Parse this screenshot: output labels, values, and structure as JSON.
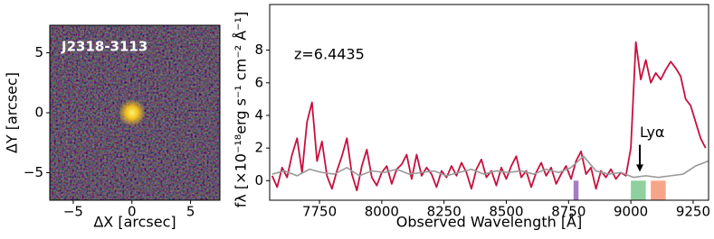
{
  "chart_data": [
    {
      "type": "image",
      "title": "J2318-3113",
      "xlabel": "ΔX [arcsec]",
      "ylabel": "ΔY [arcsec]",
      "xlim": [
        -7,
        7.5
      ],
      "ylim": [
        -7.3,
        7.3
      ],
      "xticks": [
        {
          "value": -5,
          "label": "−5"
        },
        0,
        5
      ],
      "yticks": [
        {
          "value": -5,
          "label": "−5"
        },
        0,
        5
      ]
    },
    {
      "type": "line",
      "xlabel": "Observed Wavelength [Å]",
      "ylabel": "fλ [×10⁻¹⁸erg s⁻¹ cm⁻² Å⁻¹]",
      "annotation": "z=6.4435",
      "arrow": {
        "text": "Lyα",
        "x": 9036,
        "y": 2.2,
        "arrow_to": 0.55
      },
      "xlim": [
        7550,
        9312
      ],
      "ylim": [
        -1.2,
        10.8
      ],
      "xticks": [
        7750,
        8000,
        8250,
        8500,
        8750,
        9000,
        9250
      ],
      "yticks": [
        0,
        2,
        4,
        6,
        8
      ],
      "bands": [
        {
          "range": [
            8770,
            8790
          ],
          "color": "#a77dc2"
        },
        {
          "range": [
            9000,
            9060
          ],
          "color": "#8fd19e"
        },
        {
          "range": [
            9080,
            9140
          ],
          "color": "#f7a58a"
        }
      ],
      "series": [
        {
          "color": "#c8103e",
          "x": [
            7560,
            7580,
            7600,
            7620,
            7640,
            7660,
            7680,
            7700,
            7720,
            7740,
            7760,
            7780,
            7800,
            7820,
            7840,
            7860,
            7880,
            7900,
            7920,
            7940,
            7960,
            7980,
            8000,
            8020,
            8040,
            8060,
            8080,
            8100,
            8120,
            8140,
            8160,
            8180,
            8200,
            8220,
            8240,
            8260,
            8280,
            8300,
            8320,
            8340,
            8360,
            8380,
            8400,
            8420,
            8440,
            8460,
            8480,
            8500,
            8520,
            8540,
            8560,
            8580,
            8600,
            8620,
            8640,
            8660,
            8680,
            8700,
            8720,
            8740,
            8760,
            8780,
            8800,
            8820,
            8840,
            8860,
            8880,
            8900,
            8920,
            8940,
            8960,
            8980,
            9000,
            9020,
            9040,
            9060,
            9080,
            9100,
            9120,
            9140,
            9160,
            9180,
            9200,
            9220,
            9240,
            9260,
            9280,
            9300
          ],
          "values": [
            0.3,
            -0.4,
            0.8,
            0.2,
            1.6,
            2.6,
            0.5,
            3.6,
            4.8,
            1.2,
            2.4,
            0.3,
            -0.5,
            0.6,
            1.5,
            2.6,
            0.4,
            -0.6,
            0.9,
            1.9,
            0.2,
            -0.3,
            0.5,
            0.9,
            -0.2,
            0.7,
            1.0,
            1.6,
            0.1,
            1.6,
            0.3,
            0.8,
            0.4,
            -0.4,
            0.6,
            0.2,
            0.9,
            0.3,
            1.1,
            0.5,
            -0.5,
            0.7,
            1.3,
            0.2,
            0.6,
            -0.3,
            0.8,
            0.1,
            0.9,
            1.5,
            0.2,
            0.6,
            -0.4,
            0.5,
            1.1,
            0.3,
            0.8,
            -0.2,
            0.4,
            0.9,
            0.1,
            1.2,
            1.8,
            0.4,
            0.8,
            -0.5,
            0.6,
            0.2,
            0.7,
            0.1,
            0.5,
            0.3,
            2.0,
            8.5,
            6.2,
            7.4,
            6.0,
            6.6,
            6.2,
            6.8,
            7.3,
            6.9,
            6.4,
            5.0,
            4.6,
            3.6,
            2.6,
            2.0
          ]
        },
        {
          "color": "#999999",
          "x": [
            7560,
            7610,
            7660,
            7710,
            7760,
            7810,
            7860,
            7910,
            7960,
            8010,
            8060,
            8110,
            8160,
            8210,
            8260,
            8310,
            8360,
            8410,
            8460,
            8510,
            8560,
            8610,
            8660,
            8710,
            8760,
            8810,
            8860,
            8910,
            8960,
            9010,
            9060,
            9110,
            9160,
            9210,
            9260,
            9310
          ],
          "values": [
            0.4,
            0.6,
            0.3,
            0.7,
            0.5,
            0.4,
            0.8,
            0.3,
            0.6,
            0.5,
            0.7,
            0.4,
            0.5,
            0.6,
            0.3,
            0.5,
            0.7,
            0.4,
            0.6,
            0.5,
            0.6,
            0.4,
            0.7,
            0.5,
            0.8,
            1.5,
            0.6,
            0.4,
            0.5,
            0.2,
            0.3,
            0.2,
            0.3,
            0.4,
            0.9,
            1.2
          ]
        }
      ]
    }
  ]
}
